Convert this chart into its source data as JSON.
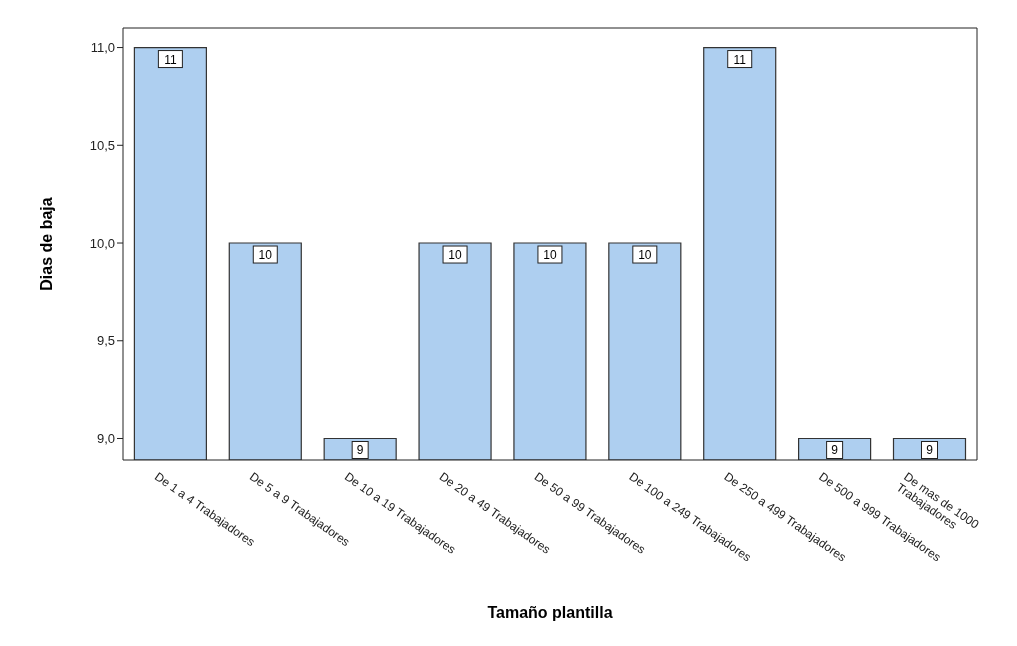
{
  "chart_data": {
    "type": "bar",
    "xlabel": "Tamaño plantilla",
    "ylabel": "Dias de baja",
    "categories": [
      "De 1 a 4 Trabajadores",
      "De 5 a 9 Trabajadores",
      "De 10 a 19 Trabajadores",
      "De 20 a 49 Trabajadores",
      "De 50 a 99 Trabajadores",
      "De 100 a 249 Trabajadores",
      "De 250 a 499 Trabajadores",
      "De 500 a 999 Trabajadores",
      "De mas de 1000 Trabajadores"
    ],
    "values": [
      11,
      10,
      9,
      10,
      10,
      10,
      11,
      9,
      9
    ],
    "color": "#aecff0",
    "ylim": [
      8.89,
      11.1
    ],
    "yticks": [
      {
        "value": 9,
        "label": "9,0"
      },
      {
        "value": 9.5,
        "label": "9,5"
      },
      {
        "value": 10,
        "label": "10,0"
      },
      {
        "value": 10.5,
        "label": "10,5"
      },
      {
        "value": 11,
        "label": "11,0"
      }
    ],
    "data_labels": true,
    "grid": false
  }
}
